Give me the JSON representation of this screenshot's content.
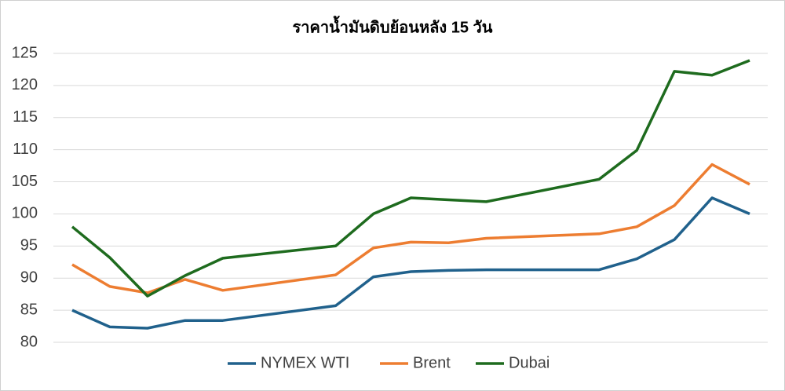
{
  "chart_data": {
    "type": "line",
    "title": "ราคาน้ำมันดิบย้อนหลัง 15 วัน",
    "x": [
      0,
      1,
      2,
      3,
      4,
      7,
      8,
      9,
      10,
      11,
      14,
      15,
      16,
      17,
      18
    ],
    "xlim": [
      0,
      18
    ],
    "series": [
      {
        "name": "NYMEX WTI",
        "color": "#20618c",
        "values": [
          85.0,
          82.4,
          82.2,
          83.4,
          83.4,
          85.7,
          90.2,
          91.0,
          91.2,
          91.3,
          91.3,
          93.0,
          96.0,
          102.5,
          100.0
        ]
      },
      {
        "name": "Brent",
        "color": "#ed7d31",
        "values": [
          92.1,
          88.7,
          87.7,
          89.8,
          88.1,
          90.5,
          94.7,
          95.6,
          95.5,
          96.2,
          96.9,
          98.0,
          101.3,
          107.7,
          104.6
        ]
      },
      {
        "name": "Dubai",
        "color": "#1e6b1e",
        "values": [
          98.0,
          93.2,
          87.2,
          90.4,
          93.1,
          95.0,
          100.0,
          102.5,
          102.2,
          101.9,
          105.4,
          109.9,
          122.2,
          121.6,
          123.9
        ]
      }
    ],
    "ylim": [
      80,
      125
    ],
    "yticks": [
      80,
      85,
      90,
      95,
      100,
      105,
      110,
      115,
      120,
      125
    ],
    "grid": true,
    "legend": "bottom"
  }
}
